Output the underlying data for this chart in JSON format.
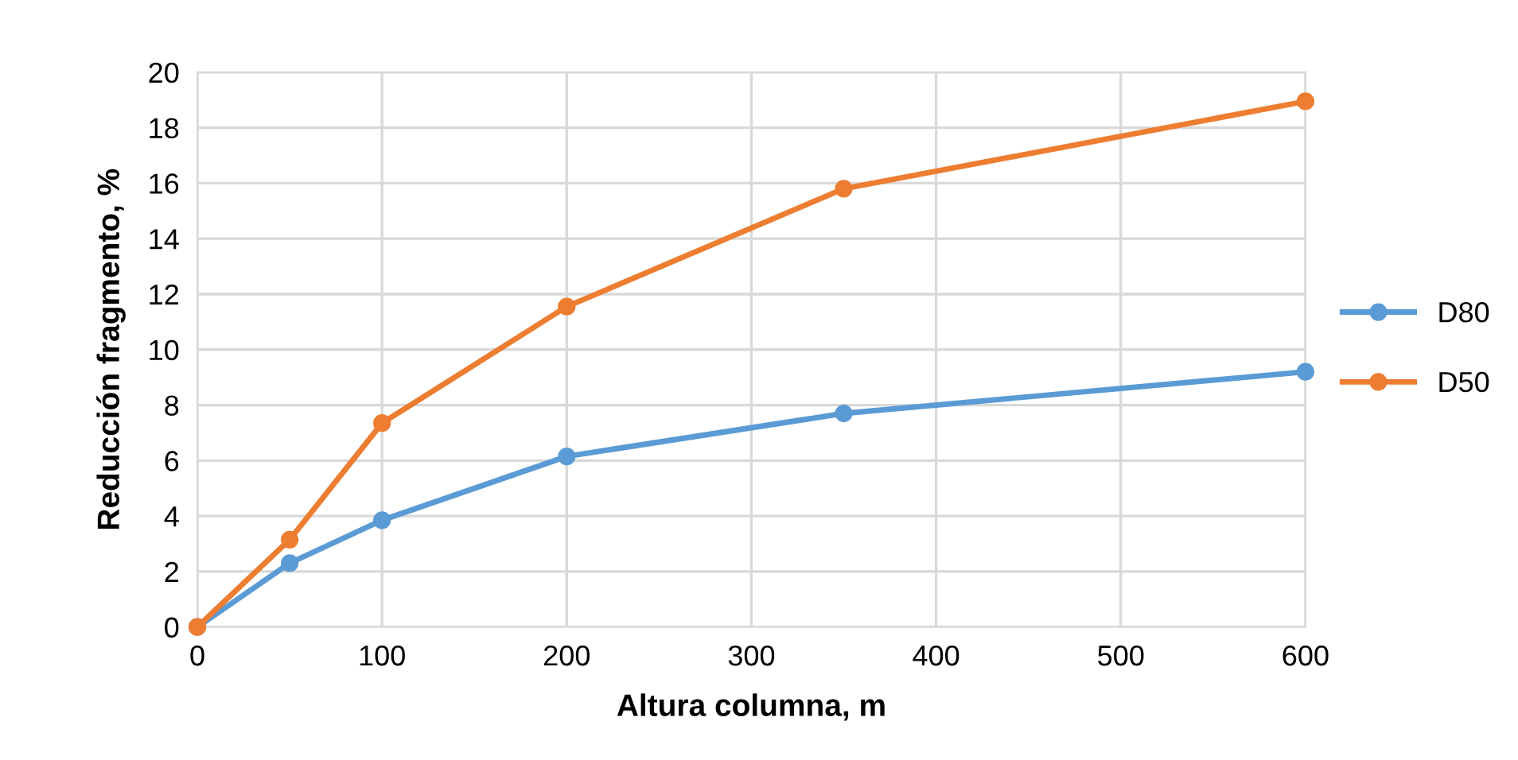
{
  "chart_data": {
    "type": "line",
    "xlabel": "Altura columna, m",
    "ylabel": "Reducción fragmento, %",
    "x": [
      0,
      50,
      100,
      200,
      350,
      600
    ],
    "series": [
      {
        "name": "D80",
        "color": "#5b9bd5",
        "values": [
          0,
          2.3,
          3.85,
          6.15,
          7.7,
          9.2
        ]
      },
      {
        "name": "D50",
        "color": "#ed7d31",
        "values": [
          0,
          3.15,
          7.35,
          11.55,
          15.8,
          18.95
        ]
      }
    ],
    "xlim": [
      0,
      600
    ],
    "xticks": [
      0,
      100,
      200,
      300,
      400,
      500,
      600
    ],
    "ylim": [
      0,
      20
    ],
    "yticks": [
      0,
      2,
      4,
      6,
      8,
      10,
      12,
      14,
      16,
      18,
      20
    ],
    "grid": true,
    "legend": "right",
    "marker": "circle",
    "line_style": "solid"
  }
}
